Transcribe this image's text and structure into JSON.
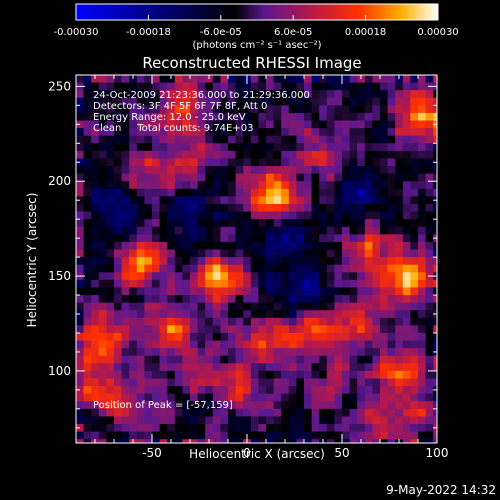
{
  "chart_data": {
    "type": "heatmap",
    "title": "Reconstructed RHESSI Image",
    "xlabel": "Heliocentric X (arcsec)",
    "ylabel": "Heliocentric Y (arcsec)",
    "xlim": [
      -90,
      100
    ],
    "ylim": [
      62,
      256
    ],
    "x_ticks": [
      -50,
      0,
      50,
      100
    ],
    "y_ticks": [
      100,
      150,
      200,
      250
    ],
    "colorbar": {
      "range": [
        -0.0003,
        0.0003
      ],
      "tick_values": [
        -0.0003,
        -0.00018,
        -6e-05,
        6e-05,
        0.00018,
        0.0003
      ],
      "tick_labels": [
        "-0.00030",
        "-0.00018",
        "-6.0e-05",
        "6.0e-05",
        "0.00018",
        "0.00030"
      ],
      "unit_label": "(photons cm⁻² s⁻¹ asec⁻²)",
      "colors": [
        "#0000ff",
        "#000000",
        "#5a1890",
        "#b81848",
        "#ff3000",
        "#ffb000",
        "#ffffff"
      ]
    },
    "annotations": [
      "24-Oct-2009 21:23:36.000 to 21:29:36.000",
      "Detectors: 3F 4F 5F 6F 7F 8F, Att 0",
      "Energy Range: 12.0 - 25.0 keV",
      "Clean     Total counts: 9.74E+03"
    ],
    "peak_label": "Position of Peak = [-57,159]",
    "peak": [
      -57,
      159
    ],
    "bright_sources": [
      {
        "x": 14,
        "y": 192,
        "level": 0.00029
      },
      {
        "x": -57,
        "y": 159,
        "level": 0.0003
      },
      {
        "x": -14,
        "y": 148,
        "level": 0.00026
      },
      {
        "x": 85,
        "y": 148,
        "level": 0.00029
      },
      {
        "x": 65,
        "y": 163,
        "level": 0.00018
      },
      {
        "x": 92,
        "y": 235,
        "level": 0.00025
      },
      {
        "x": -35,
        "y": 240,
        "level": 0.0002
      },
      {
        "x": -57,
        "y": 205,
        "level": 0.00012
      },
      {
        "x": -32,
        "y": 210,
        "level": 0.00016
      },
      {
        "x": 40,
        "y": 215,
        "level": 0.00012
      },
      {
        "x": 55,
        "y": 125,
        "level": 0.00018
      },
      {
        "x": 35,
        "y": 118,
        "level": 0.0002
      },
      {
        "x": 10,
        "y": 115,
        "level": 0.00015
      },
      {
        "x": -40,
        "y": 122,
        "level": 0.0002
      },
      {
        "x": -75,
        "y": 120,
        "level": 0.00014
      },
      {
        "x": -82,
        "y": 110,
        "level": 0.00016
      },
      {
        "x": -80,
        "y": 90,
        "level": 0.00018
      },
      {
        "x": -60,
        "y": 80,
        "level": 0.00012
      },
      {
        "x": -30,
        "y": 100,
        "level": 0.00014
      },
      {
        "x": -5,
        "y": 95,
        "level": 0.00016
      },
      {
        "x": 45,
        "y": 90,
        "level": 0.0001
      },
      {
        "x": 80,
        "y": 100,
        "level": 0.0002
      },
      {
        "x": 85,
        "y": 75,
        "level": 0.00014
      },
      {
        "x": 65,
        "y": 70,
        "level": 0.00012
      }
    ],
    "dim_regions": [
      {
        "x": -70,
        "y": 190,
        "level": -0.00012
      },
      {
        "x": 20,
        "y": 170,
        "level": -0.00014
      },
      {
        "x": -30,
        "y": 180,
        "level": -0.0001
      },
      {
        "x": 60,
        "y": 195,
        "level": -0.00012
      },
      {
        "x": -65,
        "y": 170,
        "level": -0.00014
      },
      {
        "x": 30,
        "y": 140,
        "level": -0.0001
      }
    ]
  },
  "footer": {
    "timestamp": "9-May-2022 14:32"
  }
}
